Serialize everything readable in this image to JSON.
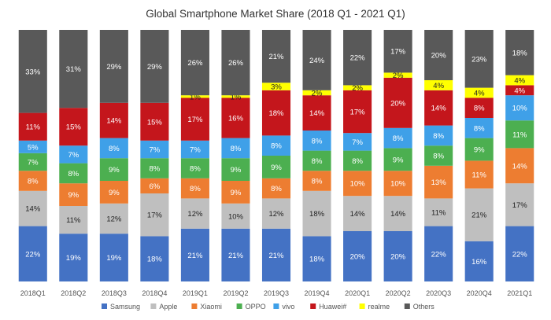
{
  "chart_data": {
    "type": "bar",
    "stacked": true,
    "normalized": true,
    "title": "Global Smartphone Market Share (2018 Q1 - 2021 Q1)",
    "categories": [
      "2018Q1",
      "2018Q2",
      "2018Q3",
      "2018Q4",
      "2019Q1",
      "2019Q2",
      "2019Q3",
      "2019Q4",
      "2020Q1",
      "2020Q2",
      "2020Q3",
      "2020Q4",
      "2021Q1"
    ],
    "series": [
      {
        "name": "Samsung",
        "color": "#4472C4",
        "label_color": "#ffffff",
        "values": [
          22,
          19,
          19,
          18,
          21,
          21,
          21,
          18,
          20,
          20,
          22,
          16,
          22
        ],
        "labels": [
          "22%",
          "19%",
          "19%",
          "18%",
          "21%",
          "21%",
          "21%",
          "18%",
          "20%",
          "20%",
          "22%",
          "16%",
          "22%"
        ]
      },
      {
        "name": "Apple",
        "color": "#BFBFBF",
        "label_color": "#222222",
        "values": [
          14,
          11,
          12,
          17,
          12,
          10,
          12,
          18,
          14,
          14,
          11,
          21,
          17
        ],
        "labels": [
          "14%",
          "11%",
          "12%",
          "17%",
          "12%",
          "10%",
          "12%",
          "18%",
          "14%",
          "14%",
          "11%",
          "21%",
          "17%"
        ]
      },
      {
        "name": "Xiaomi",
        "color": "#ED7D31",
        "label_color": "#ffffff",
        "values": [
          8,
          9,
          9,
          6,
          8,
          9,
          8,
          8,
          10,
          10,
          13,
          11,
          14
        ],
        "labels": [
          "8%",
          "9%",
          "9%",
          "6%",
          "8%",
          "9%",
          "8%",
          "8%",
          "10%",
          "10%",
          "13%",
          "11%",
          "14%"
        ]
      },
      {
        "name": "OPPO",
        "color": "#4CAF50",
        "label_color": "#ffffff",
        "values": [
          7,
          8,
          9,
          8,
          8,
          9,
          9,
          8,
          8,
          9,
          8,
          9,
          11
        ],
        "labels": [
          "7%",
          "8%",
          "9%",
          "8%",
          "8%",
          "9%",
          "9%",
          "8%",
          "8%",
          "9%",
          "8%",
          "9%",
          "11%"
        ]
      },
      {
        "name": "vivo",
        "color": "#3FA0E8",
        "label_color": "#ffffff",
        "values": [
          5,
          7,
          8,
          7,
          7,
          8,
          8,
          8,
          7,
          8,
          8,
          8,
          10
        ],
        "labels": [
          "5%",
          "7%",
          "8%",
          "7%",
          "7%",
          "8%",
          "8%",
          "8%",
          "7%",
          "8%",
          "8%",
          "8%",
          "10%"
        ]
      },
      {
        "name": "Huawei#",
        "color": "#C4161C",
        "label_color": "#ffffff",
        "values": [
          11,
          15,
          14,
          15,
          17,
          16,
          18,
          14,
          17,
          20,
          14,
          8,
          4
        ],
        "labels": [
          "11%",
          "15%",
          "14%",
          "15%",
          "17%",
          "16%",
          "18%",
          "14%",
          "17%",
          "20%",
          "14%",
          "8%",
          "4%"
        ]
      },
      {
        "name": "realme",
        "color": "#FFFF00",
        "label_color": "#222222",
        "values": [
          0,
          0,
          0,
          0,
          1,
          1,
          3,
          2,
          2,
          2,
          4,
          4,
          4
        ],
        "labels": [
          "",
          "",
          "",
          "",
          "1%",
          "1%",
          "3%",
          "2%",
          "2%",
          "2%",
          "4%",
          "4%",
          "4%"
        ]
      },
      {
        "name": "Others",
        "color": "#595959",
        "label_color": "#ffffff",
        "values": [
          33,
          31,
          29,
          29,
          26,
          26,
          21,
          24,
          22,
          17,
          20,
          23,
          18
        ],
        "labels": [
          "33%",
          "31%",
          "29%",
          "29%",
          "26%",
          "26%",
          "21%",
          "24%",
          "22%",
          "17%",
          "20%",
          "23%",
          "18%"
        ]
      }
    ],
    "xlabel": "",
    "ylabel": "",
    "legend_position": "bottom",
    "grid": false
  }
}
